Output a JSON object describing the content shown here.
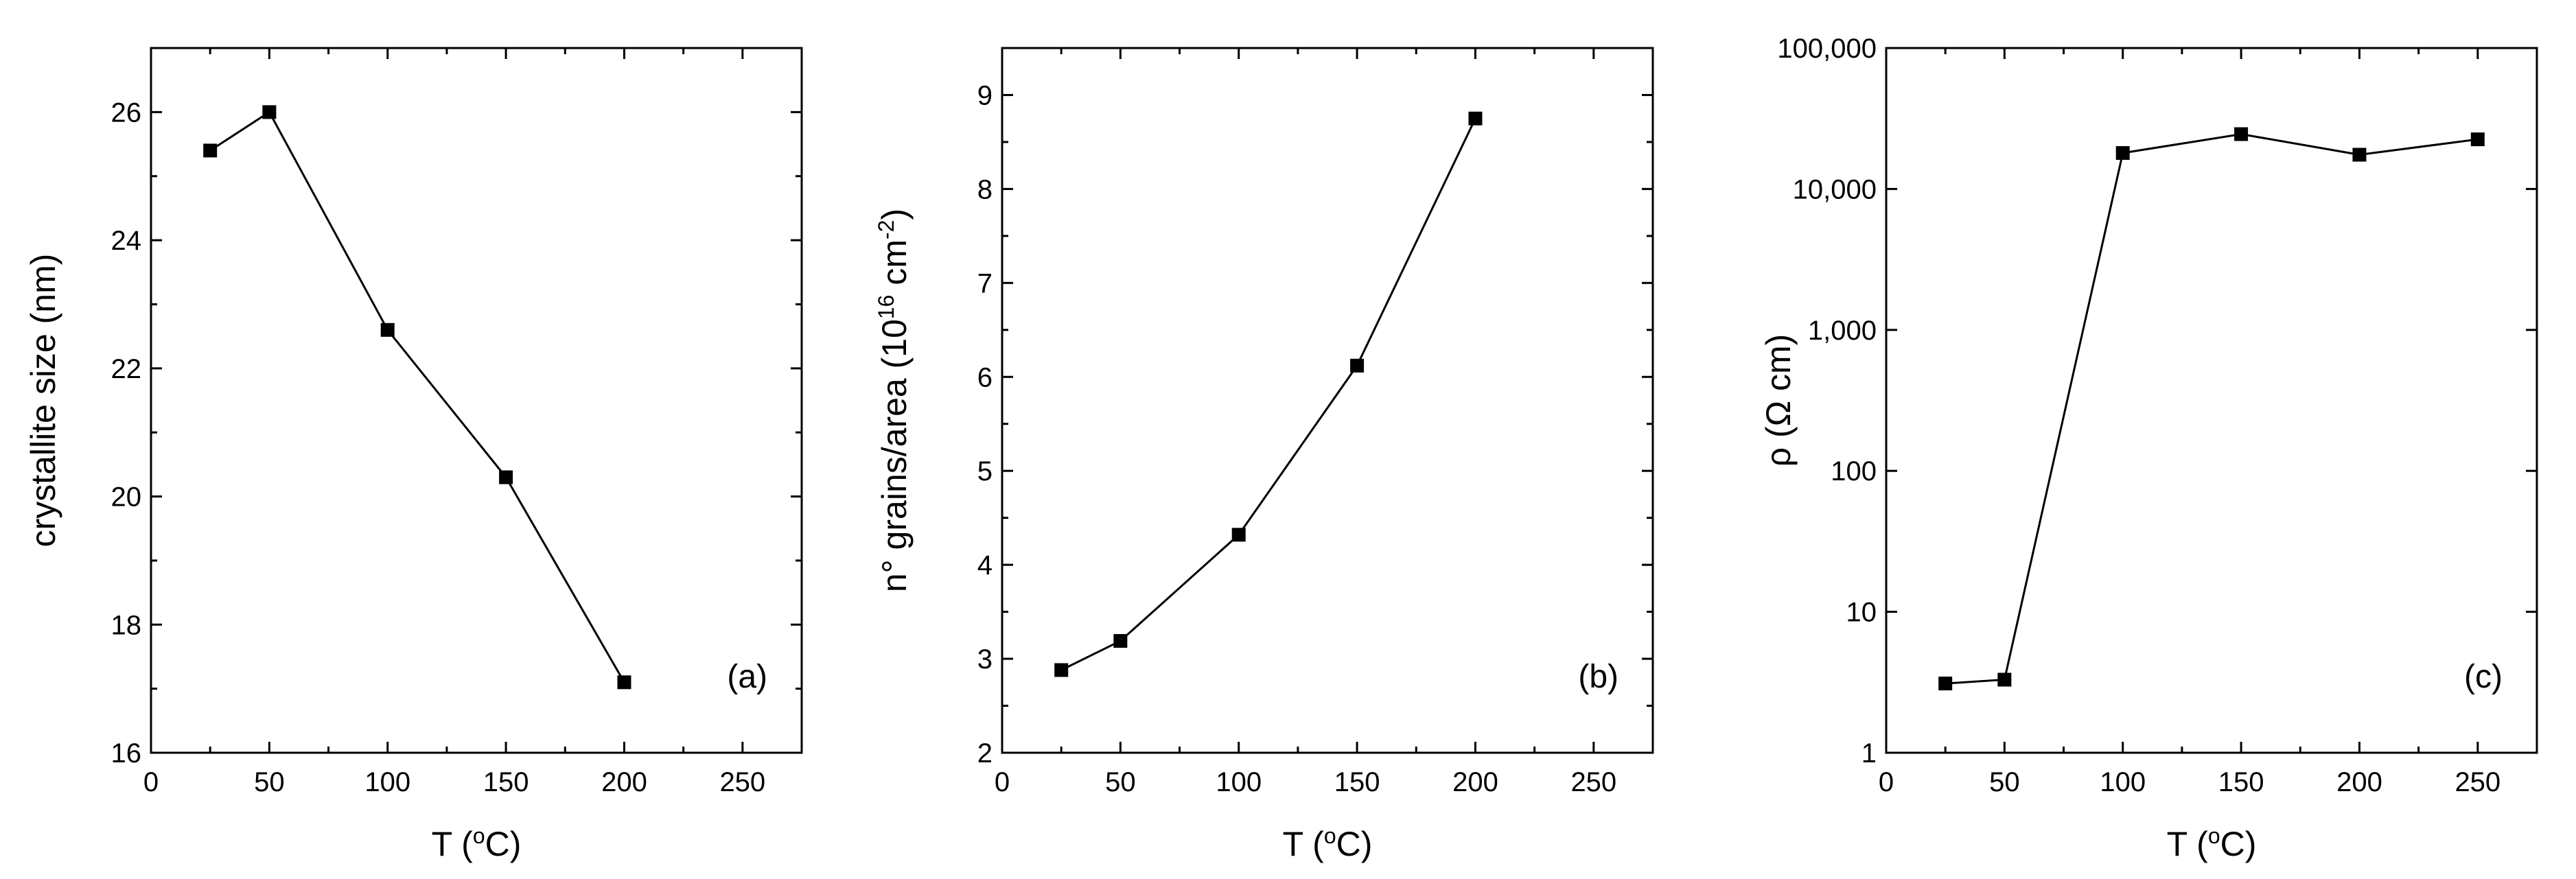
{
  "chart_data": [
    {
      "type": "line",
      "panel_label": "(a)",
      "xlabel": {
        "main": "T (",
        "sup": "o",
        "tail": "C)"
      },
      "ylabel": {
        "main": "crystallite size (nm)",
        "sup": "",
        "tail": ""
      },
      "xlim": [
        0,
        275
      ],
      "ylim": [
        16,
        27
      ],
      "yscale": "linear",
      "xticks": [
        0,
        50,
        100,
        150,
        200,
        250
      ],
      "xtick_labels": [
        "0",
        "50",
        "100",
        "150",
        "200",
        "250"
      ],
      "yticks": [
        16,
        18,
        20,
        22,
        24,
        26
      ],
      "ytick_labels": [
        "16",
        "18",
        "20",
        "22",
        "24",
        "26"
      ],
      "series": [
        {
          "name": "crystallite size",
          "x": [
            25,
            50,
            100,
            150,
            200
          ],
          "y": [
            25.4,
            26.0,
            22.6,
            20.3,
            17.1
          ]
        }
      ]
    },
    {
      "type": "line",
      "panel_label": "(b)",
      "xlabel": {
        "main": "T (",
        "sup": "o",
        "tail": "C)"
      },
      "ylabel": {
        "main": "n° grains/area (10",
        "sup": "16",
        "tail": " cm",
        "sup2": "-2",
        "tail2": ")"
      },
      "xlim": [
        0,
        275
      ],
      "ylim": [
        2,
        9.5
      ],
      "yscale": "linear",
      "xticks": [
        0,
        50,
        100,
        150,
        200,
        250
      ],
      "xtick_labels": [
        "0",
        "50",
        "100",
        "150",
        "200",
        "250"
      ],
      "yticks": [
        2,
        3,
        4,
        5,
        6,
        7,
        8,
        9
      ],
      "ytick_labels": [
        "2",
        "3",
        "4",
        "5",
        "6",
        "7",
        "8",
        "9"
      ],
      "series": [
        {
          "name": "grains per area",
          "x": [
            25,
            50,
            100,
            150,
            200
          ],
          "y": [
            2.88,
            3.19,
            4.32,
            6.12,
            8.75
          ]
        }
      ]
    },
    {
      "type": "line",
      "panel_label": "(c)",
      "xlabel": {
        "main": "T (",
        "sup": "o",
        "tail": "C)"
      },
      "ylabel": {
        "main": "ρ (Ω cm)",
        "sup": "",
        "tail": ""
      },
      "xlim": [
        0,
        275
      ],
      "ylim": [
        1,
        100000
      ],
      "yscale": "log",
      "xticks": [
        0,
        50,
        100,
        150,
        200,
        250
      ],
      "xtick_labels": [
        "0",
        "50",
        "100",
        "150",
        "200",
        "250"
      ],
      "yticks": [
        1,
        10,
        100,
        1000,
        10000,
        100000
      ],
      "ytick_labels": [
        "1",
        "10",
        "100",
        "1,000",
        "10,000",
        "100,000"
      ],
      "series": [
        {
          "name": "resistivity",
          "x": [
            25,
            50,
            100,
            150,
            200,
            250
          ],
          "y": [
            3.1,
            3.3,
            18000,
            24500,
            17500,
            22500
          ]
        }
      ]
    }
  ]
}
